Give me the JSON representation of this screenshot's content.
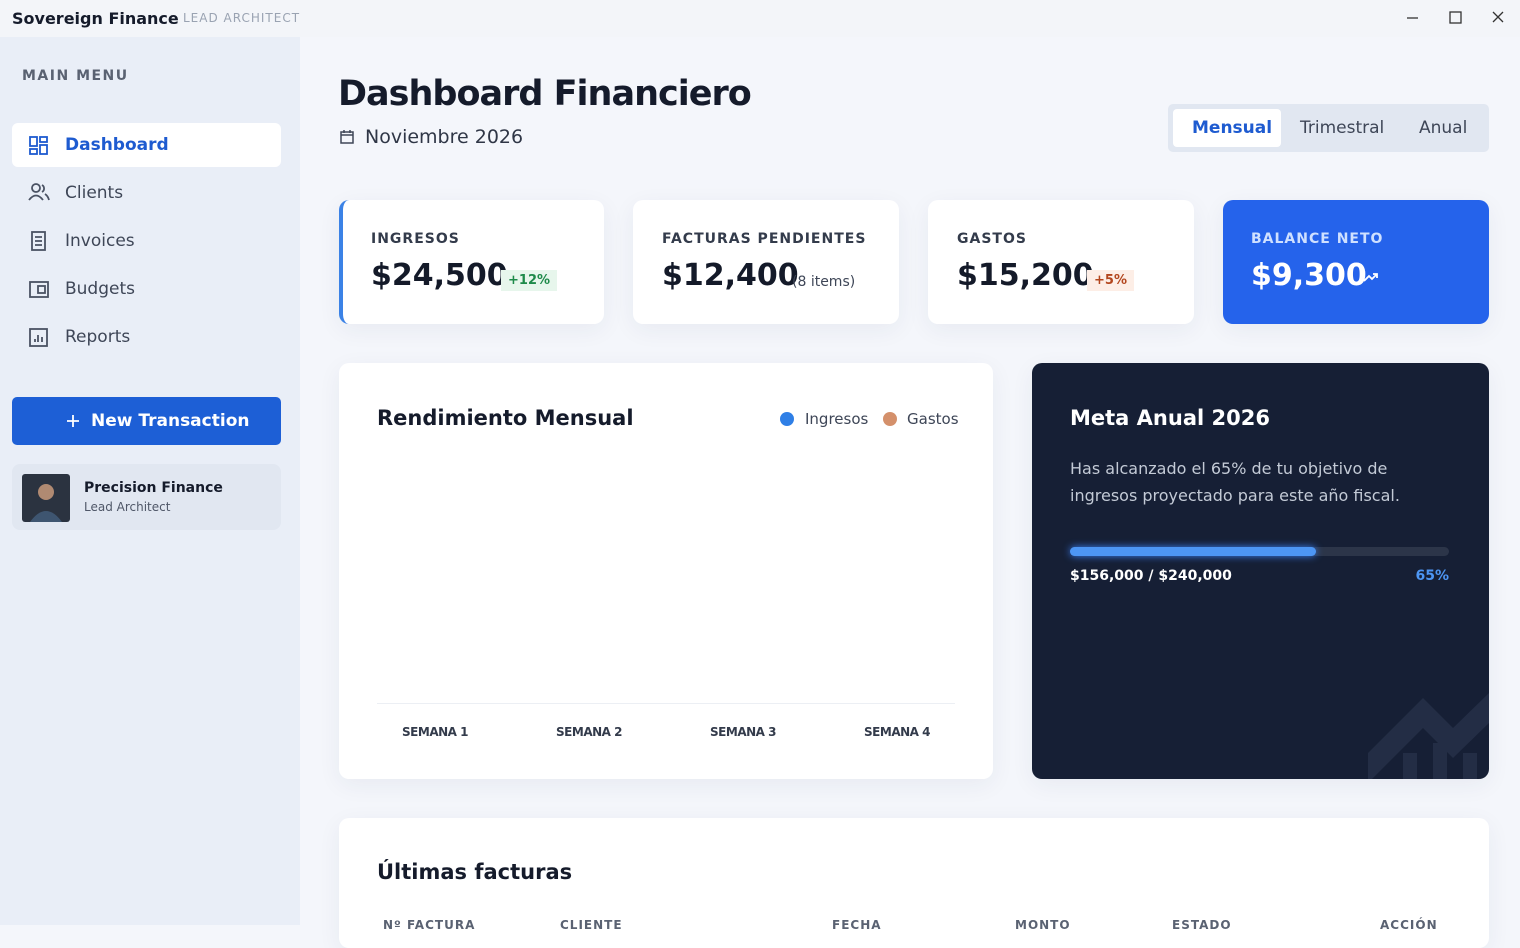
{
  "window": {
    "app_name": "Sovereign Finance",
    "role": "LEAD ARCHITECT"
  },
  "sidebar": {
    "menu_title": "MAIN MENU",
    "items": [
      "Dashboard",
      "Clients",
      "Invoices",
      "Budgets",
      "Reports"
    ],
    "action": "New Transaction",
    "profile": {
      "name": "Precision Finance",
      "role": "Lead Architect"
    }
  },
  "header": {
    "title": "Dashboard Financiero",
    "date": "Noviembre 2026",
    "periods": [
      "Mensual",
      "Trimestral",
      "Anual"
    ]
  },
  "kpis": [
    {
      "label": "INGRESOS",
      "value": "$24,500",
      "badge": "+12%"
    },
    {
      "label": "FACTURAS PENDIENTES",
      "value": "$12,400",
      "note": "(8 items)"
    },
    {
      "label": "GASTOS",
      "value": "$15,200",
      "badge": "+5%"
    },
    {
      "label": "BALANCE NETO",
      "value": "$9,300"
    }
  ],
  "chart_card": {
    "title": "Rendimiento Mensual",
    "legend": [
      "Ingresos",
      "Gastos"
    ],
    "categories": [
      "SEMANA 1",
      "SEMANA 2",
      "SEMANA 3",
      "SEMANA 4"
    ]
  },
  "goal": {
    "title": "Meta Anual 2026",
    "text": "Has alcanzado el 65% de tu objetivo de ingresos proyectado para este año fiscal.",
    "amount": "$156,000 / $240,000",
    "progress": {
      "value": 65,
      "label": "65%"
    }
  },
  "invoices": {
    "title": "Últimas facturas",
    "columns": [
      "Nº FACTURA",
      "CLIENTE",
      "FECHA",
      "MONTO",
      "ESTADO",
      "ACCIÓN"
    ]
  }
}
